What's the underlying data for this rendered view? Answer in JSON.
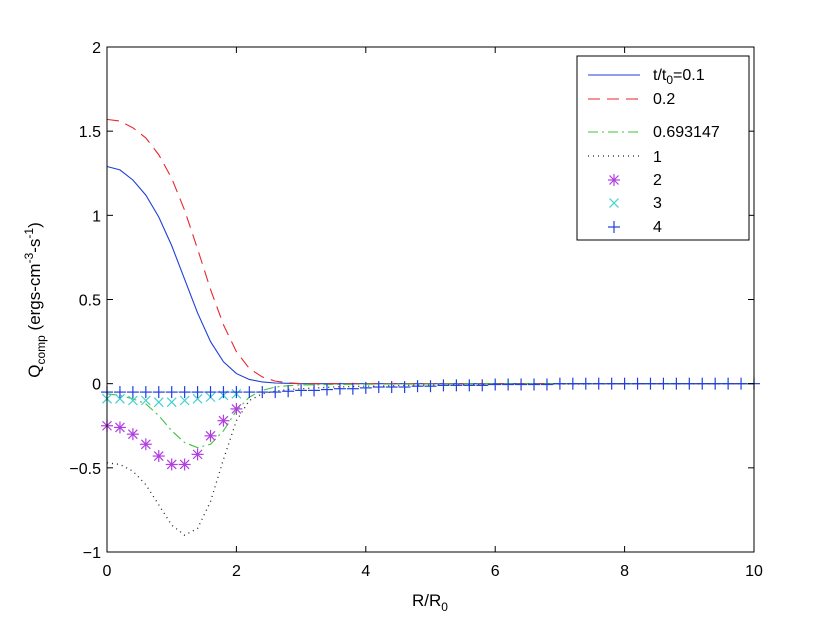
{
  "chart_data": {
    "type": "line",
    "title": "",
    "xlabel": {
      "main": "R/R",
      "sub": "0"
    },
    "ylabel": {
      "main": "Q",
      "sub": "comp",
      "rest1": " (ergs-cm",
      "sup1": "-3",
      "rest2": "-s",
      "sup2": "-1",
      "rest3": ")"
    },
    "xlim": [
      0,
      10
    ],
    "ylim": [
      -1,
      2
    ],
    "xticks": [
      0,
      2,
      4,
      6,
      8,
      10
    ],
    "xtick_labels": [
      "0",
      "2",
      "4",
      "6",
      "8",
      "10"
    ],
    "yticks": [
      -1,
      -0.5,
      0,
      0.5,
      1,
      1.5,
      2
    ],
    "ytick_labels": [
      "−1",
      "−0.5",
      "0",
      "0.5",
      "1",
      "1.5",
      "2"
    ],
    "grid": false,
    "legend_position": "top-right",
    "legend": {
      "first_label_main": "t/t",
      "first_label_sub": "0",
      "first_label_rest": "=0.1"
    },
    "series": [
      {
        "name": "t/t0=0.1",
        "label": "",
        "style": "solid",
        "marker": "none",
        "color": "#1f3fd8",
        "x": [
          0,
          0.2,
          0.4,
          0.6,
          0.8,
          1.0,
          1.2,
          1.4,
          1.6,
          1.8,
          2.0,
          2.2,
          2.4,
          2.6,
          2.8,
          3.0,
          3.5,
          4,
          5,
          6,
          7,
          8,
          9,
          10
        ],
        "y": [
          1.29,
          1.27,
          1.21,
          1.12,
          0.99,
          0.82,
          0.62,
          0.42,
          0.25,
          0.13,
          0.06,
          0.025,
          0.01,
          0.004,
          0.002,
          0.0,
          0.0,
          0.0,
          0.0,
          0.0,
          0.0,
          0.0,
          0.0,
          0.0
        ]
      },
      {
        "name": "0.2",
        "label": "0.2",
        "style": "dashed",
        "marker": "none",
        "color": "#e8262b",
        "x": [
          0,
          0.2,
          0.4,
          0.6,
          0.8,
          1.0,
          1.2,
          1.4,
          1.6,
          1.8,
          2.0,
          2.2,
          2.4,
          2.6,
          2.8,
          3.0,
          3.5,
          4,
          5,
          6,
          7,
          8,
          9,
          10
        ],
        "y": [
          1.57,
          1.56,
          1.52,
          1.46,
          1.36,
          1.22,
          1.03,
          0.8,
          0.56,
          0.35,
          0.19,
          0.09,
          0.04,
          0.015,
          0.005,
          0.0,
          0.0,
          0.0,
          0.0,
          0.0,
          0.0,
          0.0,
          0.0,
          0.0
        ]
      },
      {
        "name": "0.693147",
        "label": "0.693147",
        "style": "dashdot",
        "marker": "none",
        "color": "#3cc43c",
        "x": [
          0,
          0.2,
          0.4,
          0.6,
          0.8,
          1.0,
          1.2,
          1.4,
          1.6,
          1.8,
          2.0,
          2.2,
          2.4,
          2.6,
          2.8,
          3.0,
          3.5,
          4,
          5,
          6,
          7,
          8,
          9,
          10
        ],
        "y": [
          -0.06,
          -0.07,
          -0.09,
          -0.12,
          -0.19,
          -0.28,
          -0.35,
          -0.38,
          -0.36,
          -0.28,
          -0.16,
          -0.08,
          -0.04,
          -0.02,
          -0.012,
          -0.008,
          -0.005,
          -0.003,
          -0.002,
          0.0,
          0.0,
          0.0,
          0.0,
          0.0
        ]
      },
      {
        "name": "1",
        "label": "1",
        "style": "dotted",
        "marker": "none",
        "color": "#222222",
        "x": [
          0,
          0.2,
          0.4,
          0.6,
          0.8,
          1.0,
          1.2,
          1.4,
          1.6,
          1.8,
          2.0,
          2.2,
          2.4,
          2.6,
          2.8,
          3.0,
          3.5,
          4,
          5,
          6,
          7,
          8,
          9,
          10
        ],
        "y": [
          -0.47,
          -0.48,
          -0.52,
          -0.6,
          -0.72,
          -0.84,
          -0.9,
          -0.86,
          -0.7,
          -0.45,
          -0.22,
          -0.1,
          -0.06,
          -0.045,
          -0.035,
          -0.03,
          -0.02,
          -0.015,
          -0.008,
          -0.004,
          -0.002,
          -0.001,
          0.0,
          0.0
        ]
      },
      {
        "name": "2",
        "label": "2",
        "style": "none",
        "marker": "asterisk",
        "color": "#b03ee0",
        "x": [
          0,
          0.2,
          0.4,
          0.6,
          0.8,
          1.0,
          1.2,
          1.4,
          1.6,
          1.8,
          2.0
        ],
        "y": [
          -0.25,
          -0.26,
          -0.3,
          -0.36,
          -0.43,
          -0.48,
          -0.48,
          -0.42,
          -0.31,
          -0.22,
          -0.15
        ]
      },
      {
        "name": "3",
        "label": "3",
        "style": "none",
        "marker": "x",
        "color": "#40d0d0",
        "x": [
          0,
          0.2,
          0.4,
          0.6,
          0.8,
          1.0,
          1.2,
          1.4,
          1.6,
          1.8,
          2.0
        ],
        "y": [
          -0.09,
          -0.09,
          -0.1,
          -0.1,
          -0.11,
          -0.11,
          -0.1,
          -0.09,
          -0.08,
          -0.07,
          -0.06
        ]
      },
      {
        "name": "4",
        "label": "4",
        "style": "none",
        "marker": "plus",
        "color": "#2040e0",
        "x": [
          0,
          0.2,
          0.4,
          0.6,
          0.8,
          1.0,
          1.2,
          1.4,
          1.6,
          1.8,
          2.0,
          2.2,
          2.4,
          2.6,
          2.8,
          3.0,
          3.2,
          3.4,
          3.6,
          3.8,
          4.0,
          4.2,
          4.4,
          4.6,
          4.8,
          5.0,
          5.2,
          5.4,
          5.6,
          5.8,
          6.0,
          6.2,
          6.4,
          6.6,
          6.8,
          7.0,
          7.2,
          7.4,
          7.6,
          7.8,
          8.0,
          8.2,
          8.4,
          8.6,
          8.8,
          9.0,
          9.2,
          9.4,
          9.6,
          9.8,
          10.0
        ],
        "y": [
          -0.05,
          -0.05,
          -0.05,
          -0.05,
          -0.05,
          -0.05,
          -0.05,
          -0.05,
          -0.05,
          -0.05,
          -0.05,
          -0.05,
          -0.05,
          -0.05,
          -0.045,
          -0.04,
          -0.04,
          -0.035,
          -0.03,
          -0.03,
          -0.025,
          -0.02,
          -0.02,
          -0.02,
          -0.015,
          -0.015,
          -0.01,
          -0.01,
          -0.01,
          -0.01,
          -0.005,
          -0.005,
          -0.005,
          -0.005,
          -0.005,
          0.0,
          0.0,
          0.0,
          0.0,
          0.0,
          0.0,
          0.0,
          0.0,
          0.0,
          0.0,
          0.0,
          0.0,
          0.0,
          0.0,
          0.0,
          0.0
        ]
      }
    ]
  }
}
